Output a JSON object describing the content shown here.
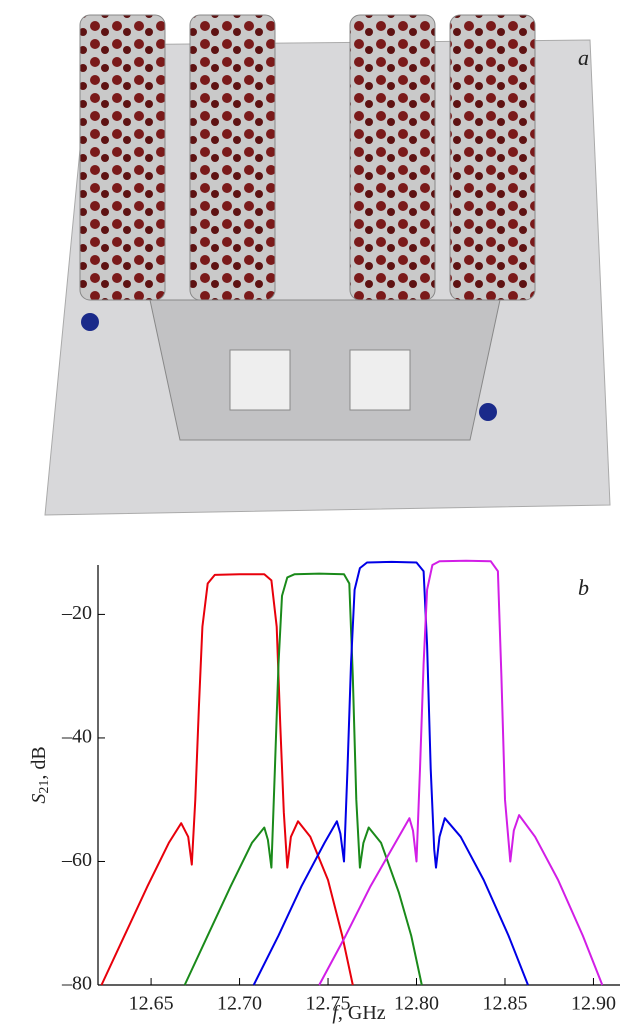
{
  "photo": {
    "label": "a"
  },
  "chart_data": {
    "type": "line",
    "label": "b",
    "x_label": {
      "symbol": "f",
      "rest": ", GHz"
    },
    "y_label": {
      "symbol": "S",
      "subscript": "21",
      "rest": ", dB"
    },
    "xlim": [
      12.62,
      12.915
    ],
    "xticks": [
      12.65,
      {
        "value": 12.7,
        "label": "12.70"
      },
      12.75,
      {
        "value": 12.8,
        "label": "12.80"
      },
      12.85,
      {
        "value": 12.9,
        "label": "12.90"
      }
    ],
    "ylim": [
      -80,
      -12
    ],
    "yticks": [
      {
        "value": -20,
        "label": "–20"
      },
      {
        "value": -40,
        "label": "–40"
      },
      {
        "value": -60,
        "label": "–60"
      },
      {
        "value": -80,
        "label": "–80"
      }
    ],
    "series": [
      {
        "color": "#e8000b",
        "x": [
          12.622,
          12.635,
          12.648,
          12.66,
          12.667,
          12.671,
          12.673,
          12.675,
          12.677,
          12.679,
          12.682,
          12.686,
          12.7,
          12.714,
          12.718,
          12.721,
          12.723,
          12.725,
          12.727,
          12.729,
          12.733,
          12.74,
          12.75,
          12.758,
          12.764
        ],
        "values": [
          -80,
          -72,
          -64,
          -57,
          -53.8,
          -56,
          -60.5,
          -50,
          -35,
          -22,
          -15,
          -13.6,
          -13.5,
          -13.5,
          -14.5,
          -22,
          -38,
          -52,
          -61,
          -56,
          -53.5,
          -56,
          -63,
          -72,
          -80
        ]
      },
      {
        "color": "#1a8a1a",
        "x": [
          12.669,
          12.682,
          12.695,
          12.707,
          12.714,
          12.716,
          12.718,
          12.72,
          12.722,
          12.724,
          12.727,
          12.731,
          12.745,
          12.759,
          12.762,
          12.764,
          12.766,
          12.768,
          12.77,
          12.773,
          12.78,
          12.79,
          12.797,
          12.803
        ],
        "values": [
          -80,
          -72,
          -64,
          -57,
          -54.5,
          -56.5,
          -61,
          -45,
          -28,
          -17,
          -14,
          -13.5,
          -13.4,
          -13.5,
          -15,
          -30,
          -50,
          -61,
          -57,
          -54.5,
          -57,
          -65,
          -72,
          -80
        ]
      },
      {
        "color": "#0000e6",
        "x": [
          12.708,
          12.722,
          12.735,
          12.748,
          12.755,
          12.757,
          12.759,
          12.761,
          12.763,
          12.765,
          12.768,
          12.772,
          12.786,
          12.8,
          12.804,
          12.806,
          12.808,
          12.81,
          12.811,
          12.813,
          12.816,
          12.825,
          12.838,
          12.852,
          12.863
        ],
        "values": [
          -80,
          -72,
          -64,
          -57,
          -53.5,
          -55.5,
          -60,
          -45,
          -28,
          -16,
          -12.5,
          -11.6,
          -11.5,
          -11.6,
          -13,
          -25,
          -45,
          -58,
          -61,
          -56,
          -53,
          -56,
          -63,
          -72,
          -80
        ]
      },
      {
        "color": "#d21ee6",
        "x": [
          12.745,
          12.76,
          12.774,
          12.788,
          12.796,
          12.798,
          12.8,
          12.802,
          12.804,
          12.806,
          12.809,
          12.813,
          12.828,
          12.842,
          12.846,
          12.848,
          12.85,
          12.853,
          12.855,
          12.858,
          12.867,
          12.88,
          12.894,
          12.905
        ],
        "values": [
          -80,
          -72,
          -64,
          -57,
          -53,
          -55,
          -60,
          -45,
          -28,
          -16,
          -12,
          -11.4,
          -11.3,
          -11.4,
          -13,
          -30,
          -50,
          -60,
          -55,
          -52.5,
          -56,
          -63,
          -72,
          -80
        ]
      }
    ]
  }
}
